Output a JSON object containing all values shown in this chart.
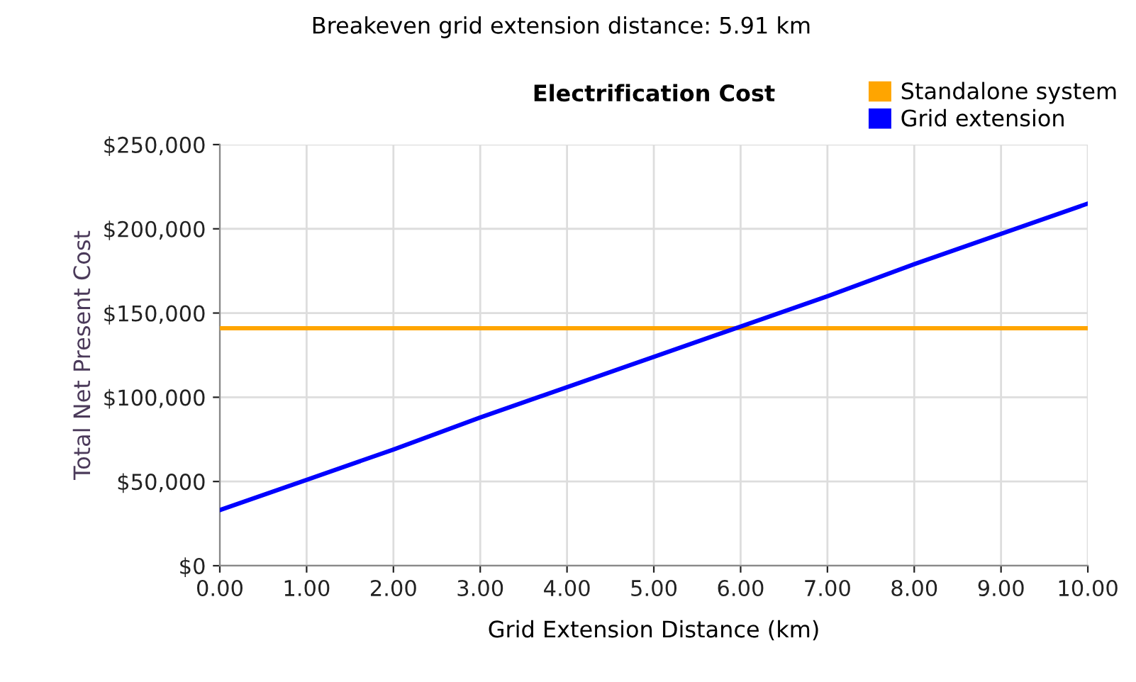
{
  "chart_data": {
    "type": "line",
    "title": "Electrification Cost",
    "xlabel": "Grid Extension Distance (km)",
    "ylabel": "Total Net Present Cost",
    "annotations": [
      "Breakeven grid extension distance: 5.91 km"
    ],
    "series": [
      {
        "name": "Standalone system",
        "color": "#ffa500",
        "x": [
          0,
          1,
          2,
          3,
          4,
          5,
          6,
          7,
          8,
          9,
          10
        ],
        "values": [
          141000,
          141000,
          141000,
          141000,
          141000,
          141000,
          141000,
          141000,
          141000,
          141000,
          141000
        ]
      },
      {
        "name": "Grid extension",
        "color": "#0000ff",
        "x": [
          0,
          1,
          2,
          3,
          4,
          5,
          6,
          7,
          8,
          9,
          10
        ],
        "values": [
          33000,
          51000,
          69000,
          88000,
          106000,
          124000,
          142000,
          160000,
          179000,
          197000,
          215000
        ]
      }
    ],
    "xlim": [
      0,
      10
    ],
    "ylim": [
      0,
      250000
    ],
    "xticks": [
      {
        "value": 0,
        "label": "0.00"
      },
      {
        "value": 1,
        "label": "1.00"
      },
      {
        "value": 2,
        "label": "2.00"
      },
      {
        "value": 3,
        "label": "3.00"
      },
      {
        "value": 4,
        "label": "4.00"
      },
      {
        "value": 5,
        "label": "5.00"
      },
      {
        "value": 6,
        "label": "6.00"
      },
      {
        "value": 7,
        "label": "7.00"
      },
      {
        "value": 8,
        "label": "8.00"
      },
      {
        "value": 9,
        "label": "9.00"
      },
      {
        "value": 10,
        "label": "10.00"
      }
    ],
    "yticks": [
      {
        "value": 0,
        "label": "$0"
      },
      {
        "value": 50000,
        "label": "$50,000"
      },
      {
        "value": 100000,
        "label": "$100,000"
      },
      {
        "value": 150000,
        "label": "$150,000"
      },
      {
        "value": 200000,
        "label": "$200,000"
      },
      {
        "value": 250000,
        "label": "$250,000"
      }
    ],
    "grid": true,
    "legend": "top right",
    "marker": "none",
    "line_style": "solid"
  }
}
